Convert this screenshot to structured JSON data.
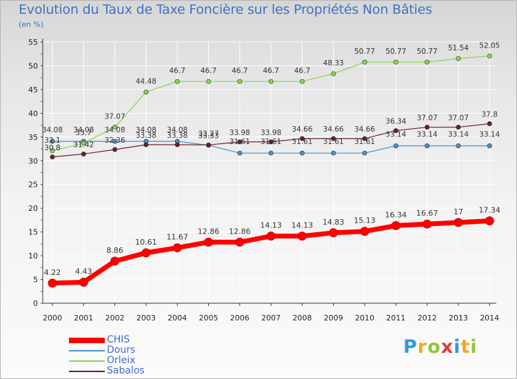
{
  "colors": {
    "title": "#3d73c4",
    "CHIS": "#ff0000",
    "Dours": "#4a90cc",
    "Orleix": "#86d64e",
    "Sabalos": "#6b1f26",
    "grid": "#ffffff",
    "axis": "#333333"
  },
  "logo": {
    "text": "Proxiti",
    "letters": [
      {
        "ch": "P",
        "color": "#2e9ad8"
      },
      {
        "ch": "r",
        "color": "#f5a623"
      },
      {
        "ch": "o",
        "color": "#8cc63f"
      },
      {
        "ch": "x",
        "color": "#e53935"
      },
      {
        "ch": "i",
        "color": "#2e9ad8"
      },
      {
        "ch": "t",
        "color": "#f5a623"
      },
      {
        "ch": "i",
        "color": "#8cc63f"
      }
    ]
  },
  "chart_data": {
    "type": "line",
    "title": "Evolution du Taux de Taxe Foncière sur les Propriétés Non Bâties",
    "ylabel": "(en %)",
    "xlabel": "",
    "ylim": [
      0,
      55
    ],
    "yticks": [
      0,
      5,
      10,
      15,
      20,
      25,
      30,
      35,
      40,
      45,
      50,
      55
    ],
    "categories": [
      "2000",
      "2001",
      "2002",
      "2003",
      "2004",
      "2005",
      "2006",
      "2007",
      "2008",
      "2009",
      "2010",
      "2011",
      "2012",
      "2013",
      "2014"
    ],
    "series": [
      {
        "name": "CHIS",
        "values": [
          4.22,
          4.43,
          8.86,
          10.61,
          11.67,
          12.86,
          12.86,
          14.13,
          14.13,
          14.83,
          15.13,
          16.34,
          16.67,
          17,
          17.34
        ],
        "labels": [
          "4.22",
          "4.43",
          "8.86",
          "10.61",
          "11.67",
          "12.86",
          "12.86",
          "14.13",
          "14.13",
          "14.83",
          "15.13",
          "16.34",
          "16.67",
          "17",
          "17.34"
        ]
      },
      {
        "name": "Dours",
        "values": [
          34.08,
          34.08,
          34.08,
          34.08,
          34.08,
          33.27,
          31.61,
          31.61,
          31.61,
          31.61,
          31.61,
          33.14,
          33.14,
          33.14,
          33.14
        ],
        "labels": [
          "34.08",
          "34.08",
          "34.08",
          "34.08",
          "34.08",
          "33.27",
          "31.61",
          "31.61",
          "31.61",
          "31.61",
          "31.61",
          "33.14",
          "33.14",
          "33.14",
          "33.14"
        ]
      },
      {
        "name": "Orleix",
        "values": [
          32.1,
          33.7,
          37.07,
          44.48,
          46.7,
          46.7,
          46.7,
          46.7,
          46.7,
          48.33,
          50.77,
          50.77,
          50.77,
          51.54,
          52.05
        ],
        "labels": [
          "32.1",
          "33.7",
          "37.07",
          "44.48",
          "46.7",
          "46.7",
          "46.7",
          "46.7",
          "46.7",
          "48.33",
          "50.77",
          "50.77",
          "50.77",
          "51.54",
          "52.05"
        ]
      },
      {
        "name": "Sabalos",
        "values": [
          30.8,
          31.42,
          32.36,
          33.38,
          33.38,
          33.33,
          33.98,
          33.98,
          34.66,
          34.66,
          34.66,
          36.34,
          37.07,
          37.07,
          37.8
        ],
        "labels": [
          "30.8",
          "31.42",
          "32.36",
          "33.38",
          "33.38",
          "33.33",
          "33.98",
          "33.98",
          "34.66",
          "34.66",
          "34.66",
          "36.34",
          "37.07",
          "37.07",
          "37.8"
        ]
      }
    ],
    "legend_position": "bottom-left",
    "grid": true
  }
}
